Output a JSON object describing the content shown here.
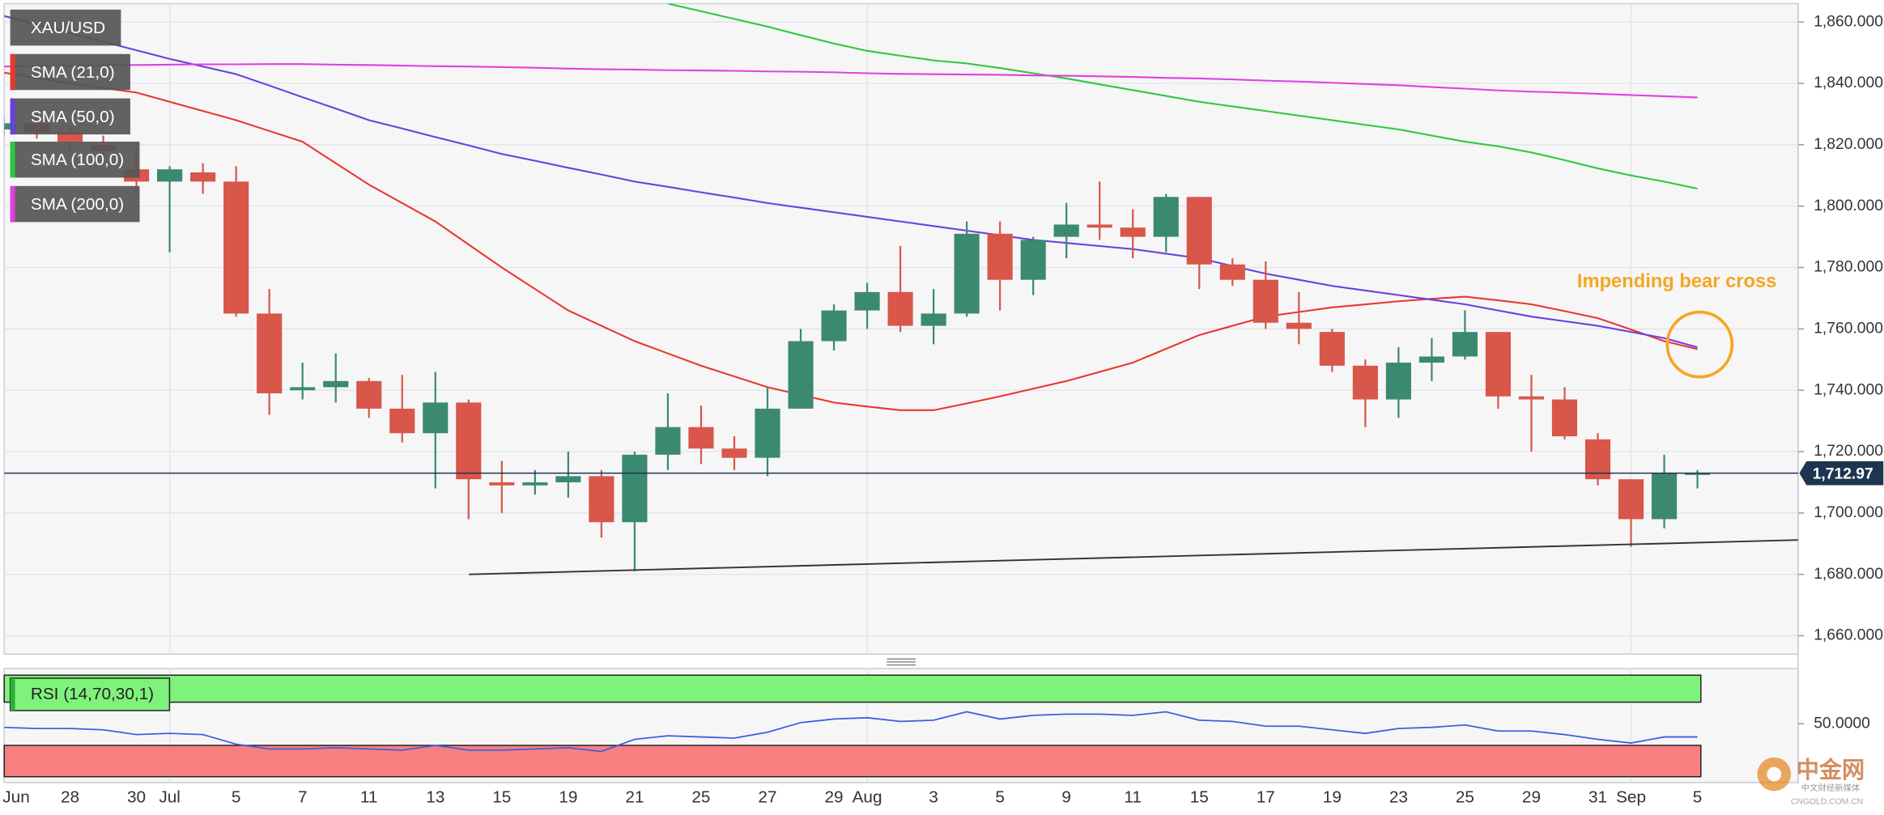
{
  "chart_data": [
    {
      "type": "candlestick",
      "categories": [
        "Jun",
        null,
        "28",
        null,
        "30",
        "Jul",
        null,
        "5",
        null,
        "7",
        null,
        "11",
        null,
        "13",
        null,
        "15",
        null,
        "19",
        null,
        "21",
        null,
        "25",
        null,
        "27",
        null,
        "29",
        "Aug",
        null,
        "3",
        null,
        "5",
        null,
        "9",
        null,
        "11",
        null,
        "15",
        null,
        "17",
        null,
        "19",
        null,
        "23",
        null,
        "25",
        null,
        "29",
        null,
        "31",
        "Sep",
        null,
        "5"
      ],
      "series": [
        {
          "name": "XAU/USD",
          "type": "candlestick",
          "up_color": "#3b8a70",
          "down_color": "#d9564a",
          "open": [
            1825,
            1827,
            1824,
            1820,
            1812,
            1808,
            1811,
            1808,
            1765,
            1740,
            1741,
            1743,
            1734,
            1726,
            1736,
            1710,
            1709,
            1710,
            1712,
            1697,
            1719,
            1728,
            1721,
            1718,
            1734,
            1756,
            1766,
            1772,
            1761,
            1765,
            1791,
            1776,
            1790,
            1794,
            1793,
            1790,
            1803,
            1781,
            1776,
            1762,
            1759,
            1748,
            1737,
            1749,
            1751,
            1759,
            1738,
            1737,
            1724,
            1711,
            1698,
            1712.5
          ],
          "high": [
            1829,
            1830,
            1826,
            1823,
            1819,
            1813,
            1814,
            1813,
            1773,
            1749,
            1752,
            1744,
            1745,
            1746,
            1737,
            1717,
            1714,
            1720,
            1714,
            1720,
            1739,
            1735,
            1725,
            1741,
            1760,
            1768,
            1775,
            1787,
            1773,
            1795,
            1795,
            1790,
            1801,
            1808,
            1799,
            1804,
            1803,
            1783,
            1782,
            1772,
            1760,
            1750,
            1754,
            1757,
            1766,
            1759,
            1745,
            1741,
            1726,
            1711,
            1719,
            1714
          ],
          "low": [
            1823,
            1822,
            1818,
            1815,
            1804,
            1785,
            1804,
            1764,
            1732,
            1737,
            1736,
            1731,
            1723,
            1708,
            1698,
            1700,
            1706,
            1705,
            1692,
            1681,
            1714,
            1716,
            1714,
            1712,
            1734,
            1753,
            1760,
            1759,
            1755,
            1764,
            1766,
            1771,
            1783,
            1789,
            1783,
            1785,
            1773,
            1774,
            1760,
            1755,
            1746,
            1728,
            1731,
            1743,
            1750,
            1734,
            1720,
            1724,
            1709,
            1689,
            1695,
            1708
          ],
          "close": [
            1827,
            1824,
            1821,
            1818,
            1808,
            1812,
            1808,
            1765,
            1739,
            1741,
            1743,
            1734,
            1726,
            1736,
            1711,
            1709,
            1710,
            1712,
            1697,
            1719,
            1728,
            1721,
            1718,
            1734,
            1756,
            1766,
            1772,
            1761,
            1765,
            1791,
            1776,
            1789,
            1794,
            1793,
            1790,
            1803,
            1781,
            1776,
            1762,
            1760,
            1748,
            1737,
            1749,
            1751,
            1759,
            1738,
            1737,
            1725,
            1711,
            1698,
            1713,
            1713
          ]
        },
        {
          "name": "SMA (21,0)",
          "type": "line",
          "color": "#e8382c",
          "values": [
            1843.5,
            1841.8,
            1840,
            1838.5,
            1837,
            1834,
            1831,
            1828,
            1824.5,
            1821,
            1814,
            1807,
            1801,
            1795,
            1787.5,
            1780,
            1773,
            1766,
            1761,
            1756,
            1752,
            1748,
            1744.5,
            1741,
            1738.5,
            1736,
            1734.7,
            1733.5,
            1733.5,
            1735.7,
            1738,
            1740.5,
            1743,
            1746,
            1749,
            1753.5,
            1758,
            1761,
            1764,
            1765.5,
            1767,
            1768,
            1769,
            1769.8,
            1770.5,
            1769.3,
            1768,
            1765.8,
            1763.5,
            1759.8,
            1756,
            1753.4
          ]
        },
        {
          "name": "SMA (50,0)",
          "type": "line",
          "color": "#6a40e0",
          "values": [
            1862,
            1859.2,
            1856.4,
            1853.6,
            1850.8,
            1848,
            1845.5,
            1843,
            1839.3,
            1835.5,
            1831.8,
            1828,
            1825.3,
            1822.5,
            1819.8,
            1817,
            1814.8,
            1812.5,
            1810.3,
            1808,
            1806.3,
            1804.5,
            1802.8,
            1801,
            1799.5,
            1798,
            1796.5,
            1795,
            1793.5,
            1792,
            1790.5,
            1789,
            1788,
            1787,
            1786,
            1784.5,
            1783,
            1780.5,
            1778,
            1776,
            1774,
            1772.5,
            1771,
            1769.5,
            1768,
            1766,
            1764,
            1762.5,
            1761,
            1759,
            1757,
            1754
          ]
        },
        {
          "name": "SMA (100,0)",
          "type": "line",
          "color": "#2ec83c",
          "values": [
            null,
            null,
            null,
            null,
            null,
            null,
            null,
            null,
            null,
            null,
            null,
            null,
            null,
            null,
            null,
            null,
            null,
            null,
            null,
            null,
            1866,
            1863.5,
            1861,
            1858.5,
            1855.7,
            1853,
            1850.6,
            1849,
            1847.5,
            1846.5,
            1845,
            1843.3,
            1841.6,
            1839.7,
            1837.8,
            1835.9,
            1834,
            1832.5,
            1831,
            1829.5,
            1828,
            1826.5,
            1825,
            1823,
            1821,
            1819.5,
            1817.5,
            1815,
            1812.3,
            1810,
            1808,
            1805.7
          ]
        },
        {
          "name": "SMA (200,0)",
          "type": "line",
          "color": "#e040e0",
          "values": [
            1845.5,
            1845.6,
            1845.8,
            1845.9,
            1846,
            1846.1,
            1846.2,
            1846.2,
            1846.3,
            1846.3,
            1846.1,
            1846,
            1845.8,
            1845.6,
            1845.5,
            1845.3,
            1845.1,
            1844.8,
            1844.6,
            1844.5,
            1844.3,
            1844.2,
            1844.1,
            1843.9,
            1843.8,
            1843.6,
            1843.3,
            1843.1,
            1843,
            1842.9,
            1842.8,
            1842.6,
            1842.5,
            1842.3,
            1842.1,
            1841.8,
            1841.6,
            1841.3,
            1840.9,
            1840.6,
            1840.2,
            1839.8,
            1839.4,
            1838.8,
            1838.3,
            1837.7,
            1837.3,
            1837,
            1836.6,
            1836.2,
            1835.8,
            1835.4
          ]
        }
      ],
      "ylim": [
        1654,
        1866
      ],
      "yticks": [
        {
          "value": 1660,
          "label": "1,660.000"
        },
        {
          "value": 1680,
          "label": "1,680.000"
        },
        {
          "value": 1700,
          "label": "1,700.000"
        },
        {
          "value": 1720,
          "label": "1,720.000"
        },
        {
          "value": 1740,
          "label": "1,740.000"
        },
        {
          "value": 1760,
          "label": "1,760.000"
        },
        {
          "value": 1780,
          "label": "1,780.000"
        },
        {
          "value": 1800,
          "label": "1,800.000"
        },
        {
          "value": 1820,
          "label": "1,820.000"
        },
        {
          "value": 1840,
          "label": "1,840.000"
        },
        {
          "value": 1860,
          "label": "1,860.000"
        }
      ],
      "grid": true,
      "last_price": {
        "value": 1712.97,
        "label": "1,712.97",
        "color": "#1d3550"
      },
      "trendline": {
        "start": 1680,
        "end": 1691.2,
        "color": "#333333"
      },
      "annotation": {
        "text": "Impending bear cross",
        "color": "#f5a623"
      }
    },
    {
      "type": "line",
      "series": [
        {
          "name": "RSI (14,70,30,1)",
          "color": "#3d5fe0",
          "values": [
            46.7,
            45.6,
            45.6,
            44.4,
            40,
            41.1,
            40,
            31.1,
            26.7,
            26.7,
            27.8,
            26.7,
            25.6,
            30,
            25.6,
            25.6,
            26.7,
            27.8,
            24.4,
            35.6,
            38.9,
            37.8,
            36.7,
            42.2,
            51.1,
            54.4,
            55.6,
            52.2,
            53.3,
            61.1,
            54.4,
            57.8,
            58.9,
            58.9,
            57.8,
            61.1,
            53.3,
            52.2,
            47.8,
            47.8,
            44.4,
            41.1,
            45.6,
            46.7,
            48.9,
            43.3,
            43.3,
            40,
            35.6,
            32.2,
            37.8,
            37.8
          ]
        }
      ],
      "ylim": [
        0,
        100
      ],
      "yticks": [
        {
          "value": 50,
          "label": "50.0000"
        }
      ],
      "upper_band": {
        "range": [
          70,
          95
        ],
        "color": "#7ef27a"
      },
      "lower_band": {
        "range": [
          1,
          30
        ],
        "color": "#f77f7f"
      }
    }
  ],
  "watermark": {
    "name": "中金网",
    "url": "CNGOLD.COM.CN",
    "tagline": "中文财经新媒体"
  }
}
